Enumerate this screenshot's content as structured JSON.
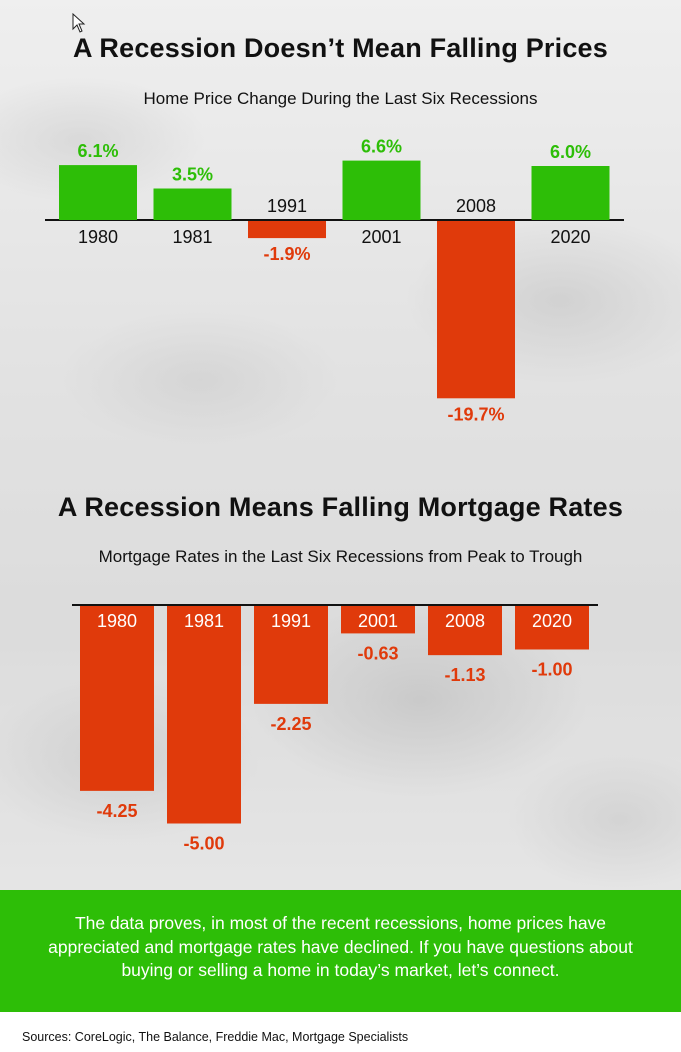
{
  "charts": [
    {
      "title": "A Recession Doesn’t Mean Falling Prices",
      "subtitle": "Home Price Change During the Last Six Recessions",
      "chart_data": {
        "type": "bar",
        "categories": [
          "1980",
          "1981",
          "1991",
          "2001",
          "2008",
          "2020"
        ],
        "values": [
          6.1,
          3.5,
          -1.9,
          6.6,
          -19.7,
          6.0
        ],
        "value_labels": [
          "6.1%",
          "3.5%",
          "-1.9%",
          "6.6%",
          "-19.7%",
          "6.0%"
        ],
        "positive_color": "#2dbe07",
        "negative_color": "#e03a0b"
      }
    },
    {
      "title": "A Recession Means Falling Mortgage Rates",
      "subtitle": "Mortgage Rates in the Last Six Recessions from Peak to Trough",
      "chart_data": {
        "type": "bar",
        "categories": [
          "1980",
          "1981",
          "1991",
          "2001",
          "2008",
          "2020"
        ],
        "values": [
          -4.25,
          -5.0,
          -2.25,
          -0.63,
          -1.13,
          -1.0
        ],
        "value_labels": [
          "-4.25",
          "-5.00",
          "-2.25",
          "-0.63",
          "-1.13",
          "-1.00"
        ],
        "negative_color": "#e03a0b"
      }
    }
  ],
  "footer": {
    "text": "The data proves, in most of the recent recessions, home prices have appreciated and mortgage rates have declined. If you have questions about buying or selling a home in today’s market, let’s connect.",
    "band_color": "#2dbe07"
  },
  "sources": "Sources: CoreLogic, The Balance, Freddie Mac, Mortgage Specialists"
}
